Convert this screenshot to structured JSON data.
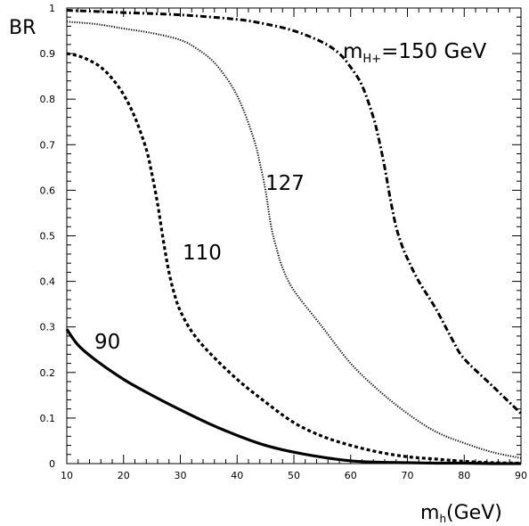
{
  "chart_data": {
    "type": "line",
    "title": "",
    "xlabel": "m",
    "xlabel_sub": "h",
    "xlabel_unit": "(GeV)",
    "ylabel": "BR",
    "xlim": [
      10,
      90
    ],
    "ylim": [
      0,
      1
    ],
    "x_ticks": [
      "10",
      "20",
      "30",
      "40",
      "50",
      "60",
      "70",
      "80",
      "90"
    ],
    "y_ticks": [
      "0",
      "0.1",
      "0.2",
      "0.3",
      "0.4",
      "0.5",
      "0.6",
      "0.7",
      "0.8",
      "0.9",
      "1"
    ],
    "grid": false,
    "series": [
      {
        "name": "90",
        "style": "solid",
        "x": [
          10,
          12,
          15,
          20,
          25,
          30,
          35,
          40,
          45,
          50,
          55,
          60,
          65,
          70,
          75,
          80,
          85,
          90
        ],
        "y": [
          0.295,
          0.26,
          0.228,
          0.185,
          0.15,
          0.118,
          0.088,
          0.062,
          0.04,
          0.025,
          0.014,
          0.006,
          0.003,
          0.002,
          0.001,
          0.001,
          0.0,
          0.0
        ]
      },
      {
        "name": "110",
        "style": "dashed",
        "x": [
          10,
          12,
          14,
          16,
          18,
          20,
          22,
          24,
          25,
          26,
          27,
          28,
          29,
          30,
          32,
          35,
          40,
          45,
          50,
          55,
          60,
          65,
          70,
          75,
          80,
          85,
          90
        ],
        "y": [
          0.9,
          0.895,
          0.885,
          0.87,
          0.845,
          0.81,
          0.76,
          0.69,
          0.635,
          0.57,
          0.49,
          0.42,
          0.37,
          0.335,
          0.29,
          0.245,
          0.185,
          0.135,
          0.09,
          0.06,
          0.04,
          0.025,
          0.015,
          0.01,
          0.005,
          0.002,
          0.001
        ]
      },
      {
        "name": "127",
        "style": "dotted",
        "x": [
          10,
          15,
          20,
          25,
          30,
          33,
          36,
          39,
          41,
          43,
          44,
          45,
          46,
          47,
          48,
          50,
          55,
          60,
          65,
          70,
          75,
          80,
          85,
          90
        ],
        "y": [
          0.97,
          0.965,
          0.955,
          0.945,
          0.93,
          0.91,
          0.88,
          0.83,
          0.78,
          0.71,
          0.66,
          0.6,
          0.52,
          0.47,
          0.43,
          0.38,
          0.3,
          0.22,
          0.16,
          0.11,
          0.07,
          0.045,
          0.025,
          0.012
        ]
      },
      {
        "name": "m_{H+}=150 GeV",
        "style": "dashdot",
        "x": [
          10,
          20,
          30,
          40,
          45,
          50,
          55,
          58,
          60,
          62,
          64,
          65,
          66,
          67,
          68,
          69,
          70,
          72,
          75,
          78,
          80,
          85,
          90
        ],
        "y": [
          0.995,
          0.99,
          0.985,
          0.975,
          0.965,
          0.95,
          0.925,
          0.9,
          0.87,
          0.83,
          0.76,
          0.71,
          0.65,
          0.58,
          0.52,
          0.48,
          0.45,
          0.4,
          0.34,
          0.27,
          0.23,
          0.17,
          0.11
        ]
      }
    ],
    "annotations": {
      "label_90": "90",
      "label_110": "110",
      "label_127": "127",
      "label_150_m": "m",
      "label_150_sub": "H+",
      "label_150_rest": "=150 GeV"
    }
  }
}
